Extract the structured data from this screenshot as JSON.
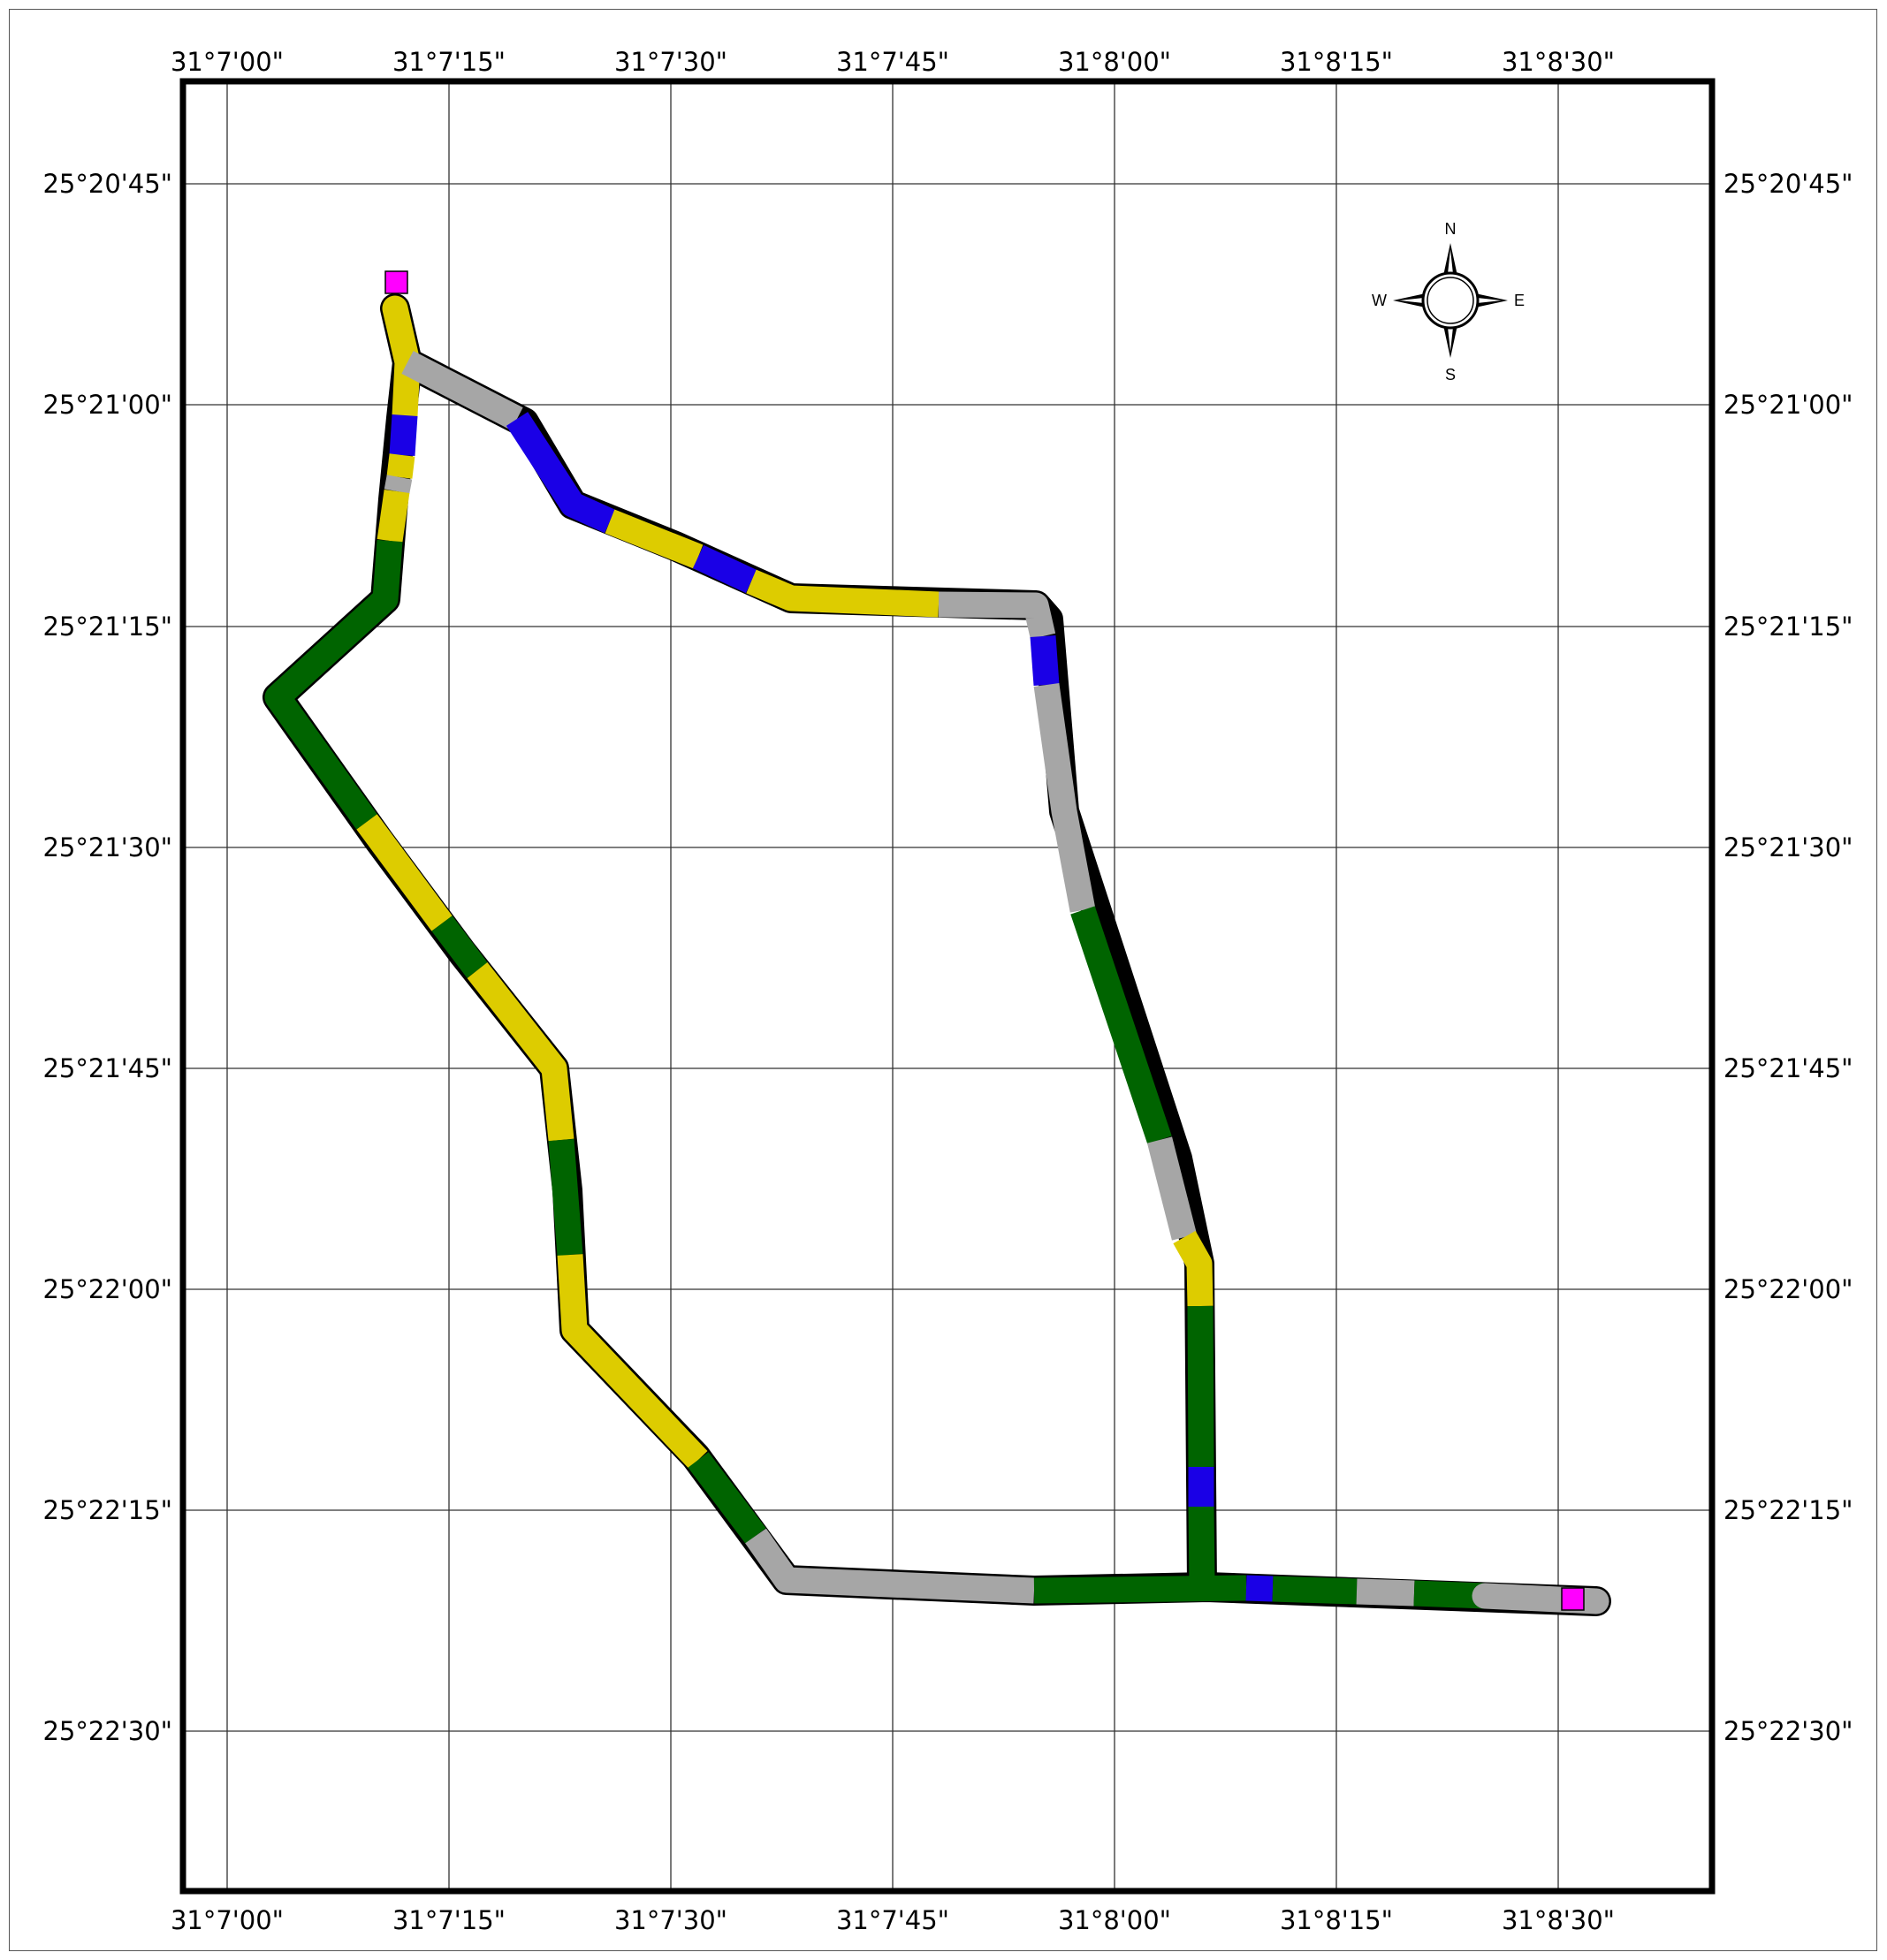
{
  "map": {
    "longitude_labels": [
      "31°7'00\"",
      "31°7'15\"",
      "31°7'30\"",
      "31°7'45\"",
      "31°8'00\"",
      "31°8'15\"",
      "31°8'30\""
    ],
    "latitude_labels": [
      "25°20'45\"",
      "25°21'00\"",
      "25°21'15\"",
      "25°21'30\"",
      "25°21'45\"",
      "25°22'00\"",
      "25°22'15\"",
      "25°22'30\""
    ],
    "compass": {
      "north": "N",
      "south": "S",
      "east": "E",
      "west": "W"
    },
    "legend_colors": {
      "class_yellow": "#ddcc00",
      "class_gray": "#a6a6a6",
      "class_blue": "#1a00e6",
      "class_green": "#006400",
      "endpoint_marker": "#ff00ff"
    }
  }
}
